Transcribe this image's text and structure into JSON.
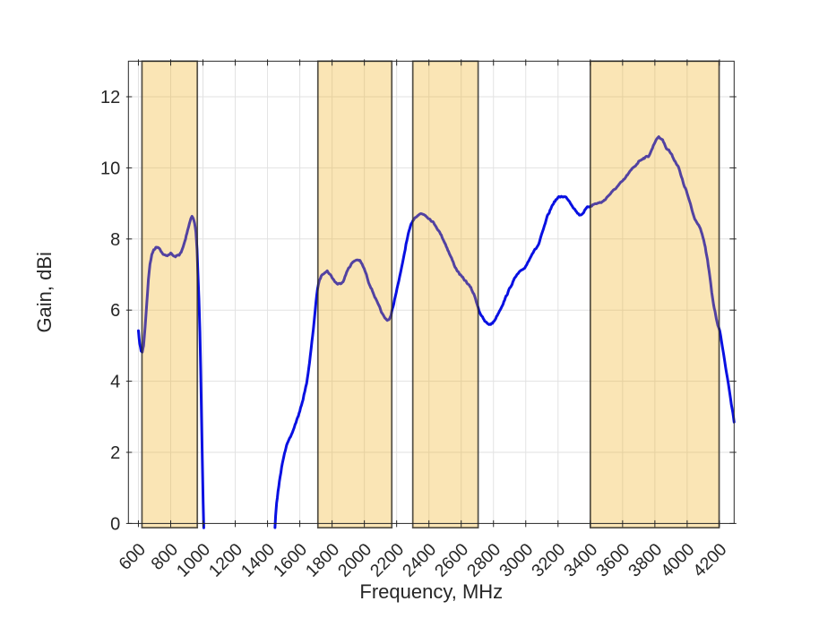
{
  "chart_data": {
    "type": "line",
    "xlabel": "Frequency, MHz",
    "ylabel": "Gain, dBi",
    "xlim": [
      538,
      4291
    ],
    "ylim": [
      0,
      13
    ],
    "xticks": [
      600,
      800,
      1000,
      1200,
      1400,
      1600,
      1800,
      2000,
      2200,
      2400,
      2600,
      2800,
      3000,
      3200,
      3400,
      3600,
      3800,
      4000,
      4200
    ],
    "yticks": [
      0,
      2,
      4,
      6,
      8,
      10,
      12
    ],
    "xtick_angle_deg": 45,
    "grid": true,
    "line_color": "#0810e2",
    "band_fill_color": "rgba(240,175,25,0.32)",
    "band_edge_color": "rgba(40,38,33,0.8)",
    "grid_color": "#e2e2e2",
    "axis_color": "#262626",
    "shaded_bands_mhz": [
      [
        622,
        965
      ],
      [
        1712,
        2170
      ],
      [
        2300,
        2705
      ],
      [
        3400,
        4198
      ]
    ],
    "band_y_extent_dbi": [
      -0.12,
      13
    ],
    "series": [
      {
        "name": "gain",
        "segments": [
          [
            [
              600,
              5.4
            ],
            [
              608,
              5.05
            ],
            [
              617,
              4.85
            ],
            [
              624,
              4.82
            ],
            [
              632,
              5.0
            ],
            [
              642,
              5.55
            ],
            [
              652,
              6.2
            ],
            [
              662,
              6.85
            ],
            [
              672,
              7.3
            ],
            [
              683,
              7.55
            ],
            [
              695,
              7.7
            ],
            [
              708,
              7.76
            ],
            [
              722,
              7.78
            ],
            [
              735,
              7.72
            ],
            [
              748,
              7.6
            ],
            [
              762,
              7.54
            ],
            [
              775,
              7.52
            ],
            [
              788,
              7.57
            ],
            [
              800,
              7.6
            ],
            [
              812,
              7.54
            ],
            [
              825,
              7.5
            ],
            [
              838,
              7.52
            ],
            [
              852,
              7.56
            ],
            [
              865,
              7.62
            ],
            [
              878,
              7.78
            ],
            [
              892,
              8.0
            ],
            [
              905,
              8.25
            ],
            [
              916,
              8.45
            ],
            [
              925,
              8.58
            ],
            [
              932,
              8.64
            ],
            [
              940,
              8.6
            ],
            [
              948,
              8.45
            ],
            [
              956,
              8.2
            ],
            [
              963,
              7.7
            ],
            [
              969,
              7.0
            ],
            [
              975,
              6.3
            ],
            [
              981,
              5.4
            ],
            [
              986,
              4.3
            ],
            [
              991,
              3.0
            ],
            [
              996,
              1.8
            ],
            [
              1001,
              0.6
            ],
            [
              1005,
              -0.12
            ]
          ],
          [
            [
              1446,
              -0.12
            ],
            [
              1450,
              0.2
            ],
            [
              1456,
              0.55
            ],
            [
              1465,
              0.9
            ],
            [
              1478,
              1.3
            ],
            [
              1492,
              1.7
            ],
            [
              1505,
              2.0
            ],
            [
              1518,
              2.2
            ],
            [
              1532,
              2.32
            ],
            [
              1548,
              2.48
            ],
            [
              1565,
              2.7
            ],
            [
              1582,
              2.92
            ],
            [
              1600,
              3.15
            ],
            [
              1620,
              3.5
            ],
            [
              1642,
              3.95
            ],
            [
              1660,
              4.5
            ],
            [
              1675,
              5.1
            ],
            [
              1688,
              5.65
            ],
            [
              1700,
              6.2
            ],
            [
              1710,
              6.6
            ],
            [
              1722,
              6.85
            ],
            [
              1738,
              7.0
            ],
            [
              1755,
              7.08
            ],
            [
              1770,
              7.1
            ],
            [
              1785,
              7.02
            ],
            [
              1800,
              6.92
            ],
            [
              1818,
              6.8
            ],
            [
              1835,
              6.73
            ],
            [
              1852,
              6.75
            ],
            [
              1868,
              6.82
            ],
            [
              1885,
              7.0
            ],
            [
              1902,
              7.18
            ],
            [
              1920,
              7.3
            ],
            [
              1938,
              7.38
            ],
            [
              1955,
              7.42
            ],
            [
              1972,
              7.39
            ],
            [
              1990,
              7.25
            ],
            [
              2008,
              7.05
            ],
            [
              2026,
              6.8
            ],
            [
              2045,
              6.6
            ],
            [
              2065,
              6.38
            ],
            [
              2085,
              6.15
            ],
            [
              2105,
              5.95
            ],
            [
              2122,
              5.8
            ],
            [
              2138,
              5.72
            ],
            [
              2152,
              5.74
            ],
            [
              2165,
              5.85
            ],
            [
              2178,
              6.1
            ],
            [
              2192,
              6.4
            ],
            [
              2208,
              6.7
            ],
            [
              2225,
              7.05
            ],
            [
              2242,
              7.45
            ],
            [
              2258,
              7.85
            ],
            [
              2272,
              8.12
            ],
            [
              2286,
              8.35
            ],
            [
              2300,
              8.52
            ],
            [
              2315,
              8.62
            ],
            [
              2332,
              8.68
            ],
            [
              2350,
              8.71
            ],
            [
              2368,
              8.7
            ],
            [
              2385,
              8.65
            ],
            [
              2402,
              8.58
            ],
            [
              2420,
              8.5
            ],
            [
              2438,
              8.4
            ],
            [
              2455,
              8.28
            ],
            [
              2472,
              8.14
            ],
            [
              2490,
              7.98
            ],
            [
              2508,
              7.8
            ],
            [
              2526,
              7.6
            ],
            [
              2545,
              7.4
            ],
            [
              2562,
              7.22
            ],
            [
              2580,
              7.08
            ],
            [
              2600,
              6.95
            ],
            [
              2620,
              6.85
            ],
            [
              2640,
              6.75
            ],
            [
              2660,
              6.62
            ],
            [
              2678,
              6.45
            ],
            [
              2694,
              6.25
            ],
            [
              2710,
              6.0
            ],
            [
              2728,
              5.82
            ],
            [
              2746,
              5.68
            ],
            [
              2762,
              5.62
            ],
            [
              2778,
              5.6
            ],
            [
              2794,
              5.63
            ],
            [
              2810,
              5.74
            ],
            [
              2828,
              5.9
            ],
            [
              2846,
              6.06
            ],
            [
              2864,
              6.24
            ],
            [
              2882,
              6.42
            ],
            [
              2900,
              6.6
            ],
            [
              2920,
              6.8
            ],
            [
              2940,
              6.95
            ],
            [
              2958,
              7.05
            ],
            [
              2975,
              7.1
            ],
            [
              2992,
              7.18
            ],
            [
              3010,
              7.32
            ],
            [
              3028,
              7.5
            ],
            [
              3045,
              7.63
            ],
            [
              3062,
              7.72
            ],
            [
              3080,
              7.85
            ],
            [
              3098,
              8.1
            ],
            [
              3115,
              8.35
            ],
            [
              3132,
              8.6
            ],
            [
              3150,
              8.8
            ],
            [
              3168,
              8.98
            ],
            [
              3186,
              9.1
            ],
            [
              3205,
              9.17
            ],
            [
              3225,
              9.2
            ],
            [
              3245,
              9.18
            ],
            [
              3262,
              9.12
            ],
            [
              3280,
              9.0
            ],
            [
              3298,
              8.88
            ],
            [
              3315,
              8.76
            ],
            [
              3332,
              8.68
            ],
            [
              3348,
              8.7
            ],
            [
              3365,
              8.8
            ],
            [
              3382,
              8.88
            ],
            [
              3400,
              8.93
            ],
            [
              3418,
              8.97
            ],
            [
              3438,
              9.0
            ],
            [
              3458,
              9.02
            ],
            [
              3478,
              9.05
            ],
            [
              3492,
              9.12
            ],
            [
              3508,
              9.2
            ],
            [
              3525,
              9.28
            ],
            [
              3542,
              9.35
            ],
            [
              3560,
              9.44
            ],
            [
              3578,
              9.52
            ],
            [
              3595,
              9.6
            ],
            [
              3612,
              9.68
            ],
            [
              3630,
              9.8
            ],
            [
              3648,
              9.9
            ],
            [
              3665,
              10.0
            ],
            [
              3682,
              10.08
            ],
            [
              3700,
              10.18
            ],
            [
              3715,
              10.24
            ],
            [
              3730,
              10.28
            ],
            [
              3745,
              10.3
            ],
            [
              3760,
              10.33
            ],
            [
              3775,
              10.45
            ],
            [
              3790,
              10.62
            ],
            [
              3802,
              10.74
            ],
            [
              3812,
              10.84
            ],
            [
              3824,
              10.86
            ],
            [
              3836,
              10.82
            ],
            [
              3848,
              10.8
            ],
            [
              3858,
              10.68
            ],
            [
              3872,
              10.56
            ],
            [
              3886,
              10.5
            ],
            [
              3900,
              10.4
            ],
            [
              3915,
              10.27
            ],
            [
              3930,
              10.15
            ],
            [
              3945,
              10.05
            ],
            [
              3960,
              9.8
            ],
            [
              3978,
              9.55
            ],
            [
              3995,
              9.35
            ],
            [
              4012,
              9.1
            ],
            [
              4030,
              8.8
            ],
            [
              4048,
              8.55
            ],
            [
              4065,
              8.45
            ],
            [
              4082,
              8.32
            ],
            [
              4098,
              8.05
            ],
            [
              4112,
              7.75
            ],
            [
              4126,
              7.4
            ],
            [
              4140,
              6.95
            ],
            [
              4152,
              6.5
            ],
            [
              4164,
              6.15
            ],
            [
              4177,
              5.85
            ],
            [
              4190,
              5.6
            ],
            [
              4202,
              5.4
            ],
            [
              4214,
              5.1
            ],
            [
              4226,
              4.75
            ],
            [
              4238,
              4.4
            ],
            [
              4250,
              4.1
            ],
            [
              4262,
              3.7
            ],
            [
              4274,
              3.35
            ],
            [
              4283,
              3.1
            ],
            [
              4291,
              2.85
            ]
          ]
        ]
      }
    ]
  }
}
